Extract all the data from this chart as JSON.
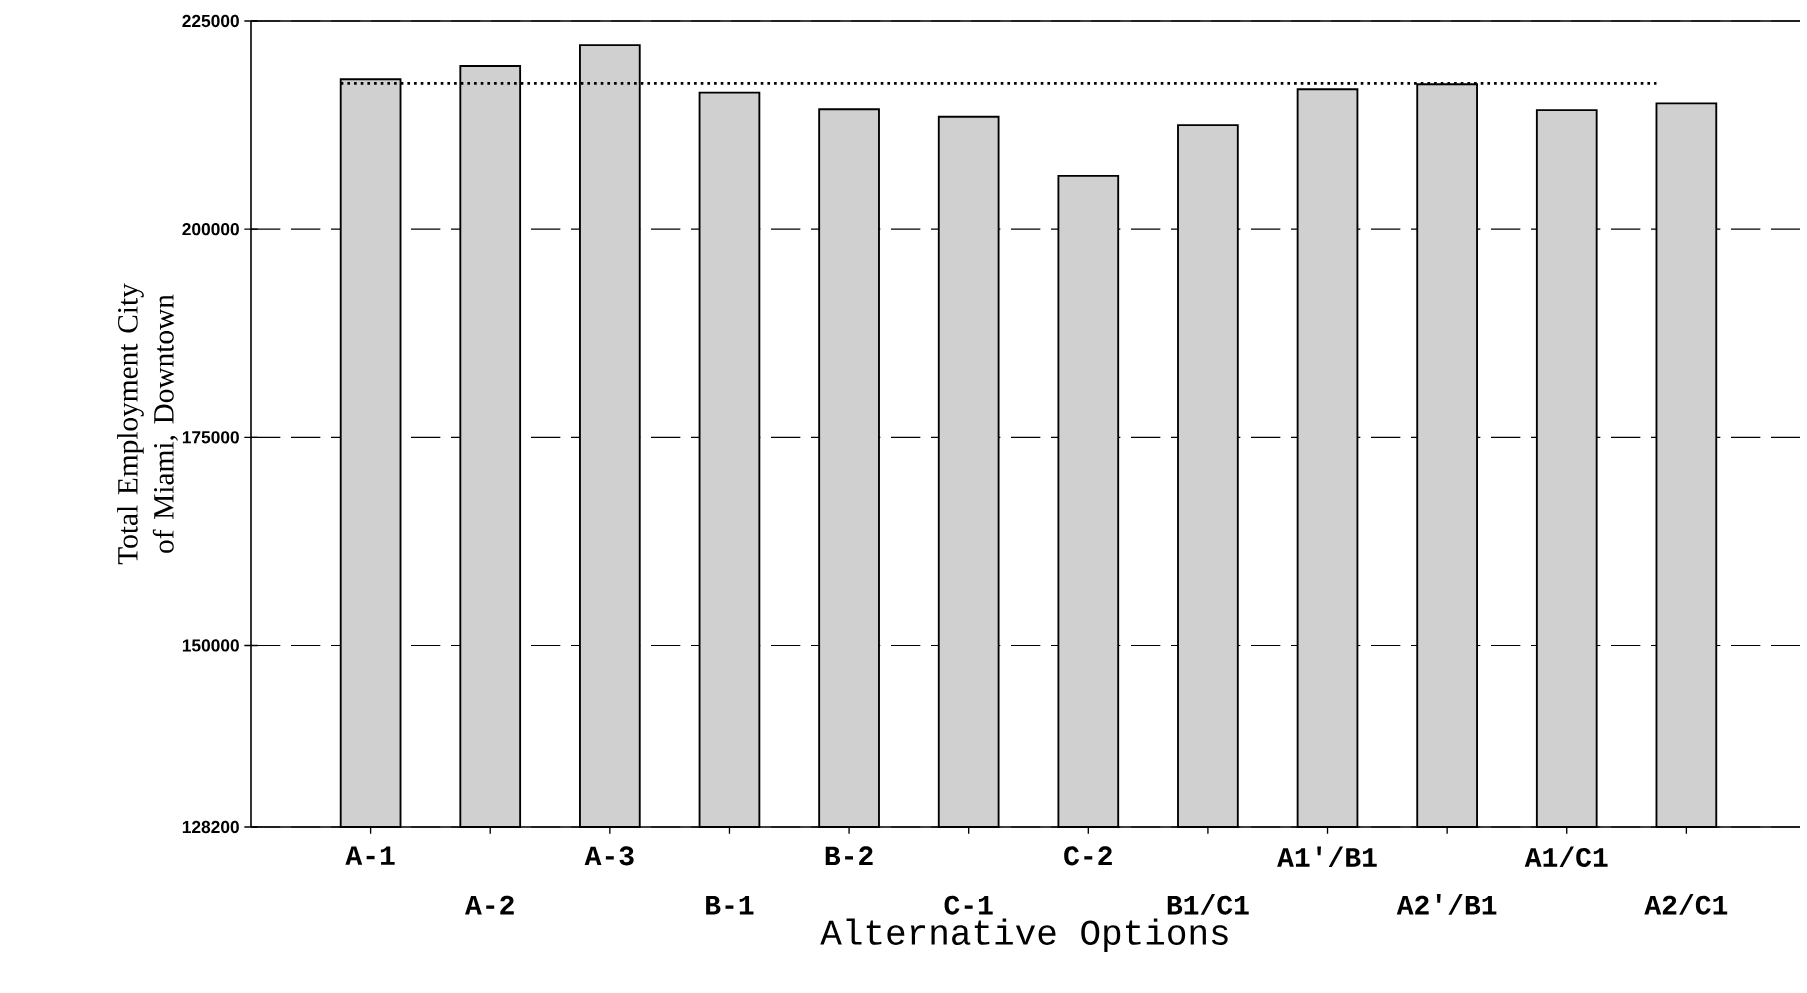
{
  "chart_data": {
    "type": "bar",
    "xlabel": "Alternative Options",
    "ylabel": "Total Employment City of Miami, Downtown",
    "categories": [
      "A-1",
      "A-2",
      "A-3",
      "B-1",
      "B-2",
      "C-1",
      "C-2",
      "B1/C1",
      "A1'/B1",
      "A2'/B1",
      "A1/C1",
      "A2/C1"
    ],
    "values": [
      218000,
      219600,
      222100,
      216400,
      214400,
      213500,
      206400,
      212500,
      216800,
      217400,
      214300,
      215100
    ],
    "color": "#d0d0d0",
    "ylim": [
      128200,
      225000
    ],
    "yticks": [
      128200,
      150000,
      175000,
      200000,
      225000
    ],
    "grid": "y",
    "ref_lines": [
      {
        "axis": "y",
        "value": 217500,
        "line_style": "dotted"
      }
    ]
  }
}
